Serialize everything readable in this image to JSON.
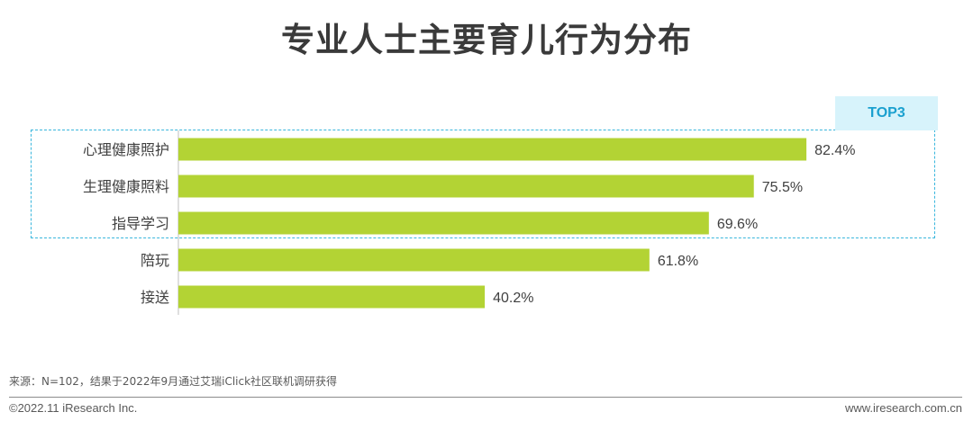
{
  "title": "专业人士主要育儿行为分布",
  "top_badge": "TOP3",
  "source_note": "来源：N=102，结果于2022年9月通过艾瑞iClick社区联机调研获得",
  "copyright": "©2022.11 iResearch Inc.",
  "website": "www.iresearch.com.cn",
  "colors": {
    "bar": "#b3d334",
    "highlight_border": "#39b6dd",
    "badge_bg": "#d7f3fb",
    "badge_text": "#1ba0cf"
  },
  "chart_data": {
    "type": "bar",
    "orientation": "horizontal",
    "categories": [
      "心理健康照护",
      "生理健康照料",
      "指导学习",
      "陪玩",
      "接送"
    ],
    "values": [
      82.4,
      75.5,
      69.6,
      61.8,
      40.2
    ],
    "value_labels": [
      "82.4%",
      "75.5%",
      "69.6%",
      "61.8%",
      "40.2%"
    ],
    "unit": "%",
    "xlim": [
      0,
      100
    ],
    "grid": false,
    "legend": "none",
    "highlight_top_n": 3
  }
}
